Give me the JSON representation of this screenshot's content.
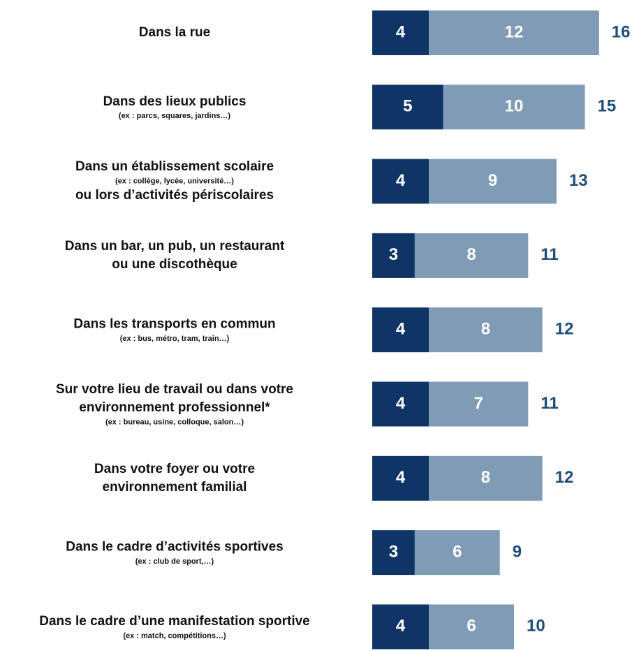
{
  "chart_data": {
    "type": "stacked-bar-horizontal",
    "categories": [
      [
        "Dans la rue"
      ],
      [
        "Dans des lieux publics",
        "(ex : parcs, squares, jardins…)"
      ],
      [
        "Dans un établissement scolaire",
        "(ex : collège, lycée, université…)",
        "ou lors d’activités périscolaires"
      ],
      [
        "Dans un bar, un pub, un restaurant",
        "ou une discothèque"
      ],
      [
        "Dans les transports en commun",
        "(ex : bus, métro, tram, train…)"
      ],
      [
        "Sur votre lieu de travail ou dans votre",
        "environnement professionnel*",
        "(ex : bureau, usine, colloque, salon…)"
      ],
      [
        "Dans votre foyer ou votre",
        "environnement familial"
      ],
      [
        "Dans le cadre d’activités sportives",
        "(ex : club de sport,…)"
      ],
      [
        "Dans le cadre d’une manifestation sportive",
        "(ex : match, compétitions…)"
      ]
    ],
    "series": [
      {
        "color": "#0f3566",
        "values": [
          4,
          5,
          4,
          3,
          4,
          4,
          4,
          3,
          4
        ]
      },
      {
        "color": "#7f9bb6",
        "values": [
          12,
          10,
          9,
          8,
          8,
          7,
          8,
          6,
          6
        ]
      }
    ],
    "totals": [
      16,
      15,
      13,
      11,
      12,
      11,
      12,
      9,
      10
    ]
  }
}
